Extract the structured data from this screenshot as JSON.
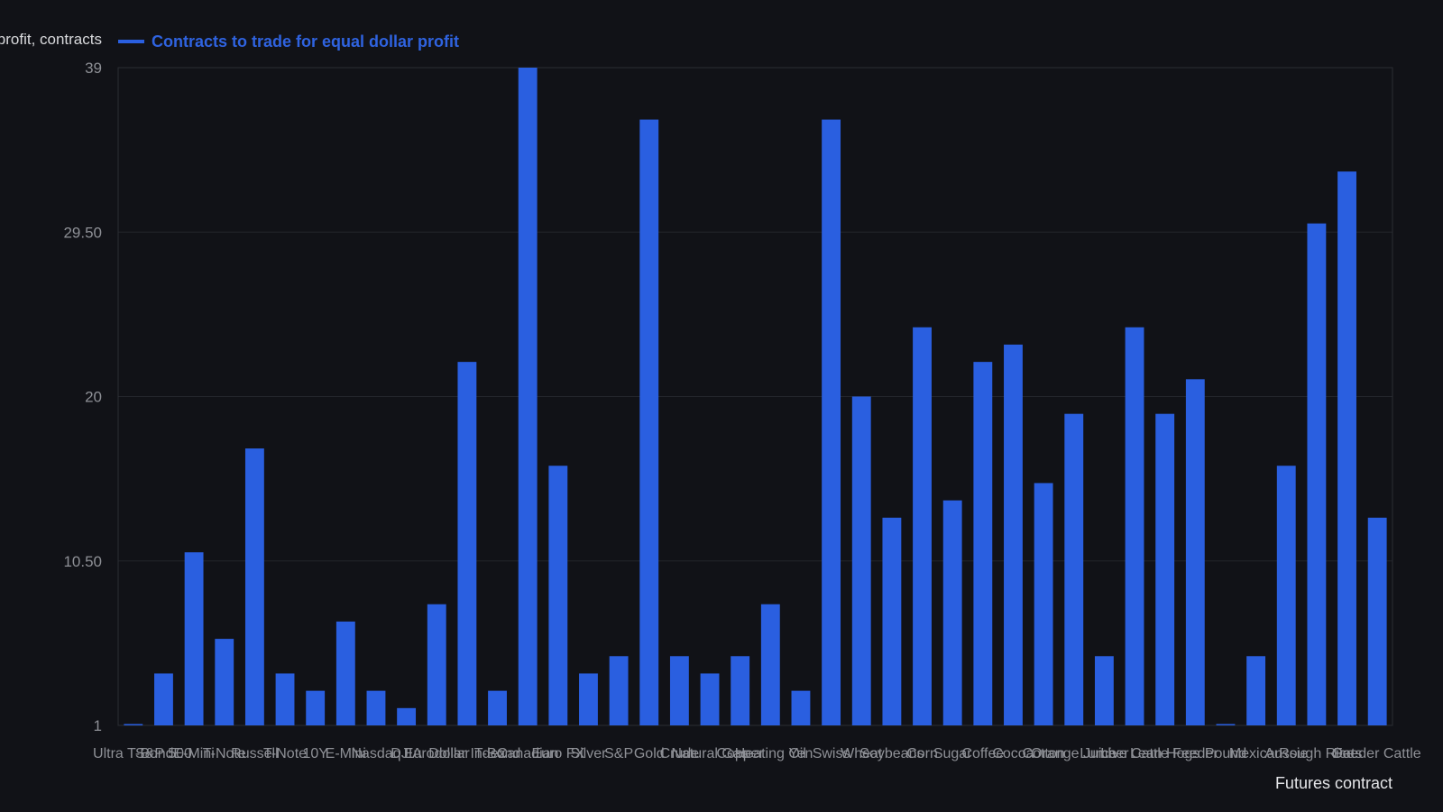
{
  "chart_data": {
    "type": "bar",
    "ylabel": "Contracts to trade for equal dollar profit, contracts",
    "xlabel": "Futures contract",
    "legend": {
      "placement": "top-left",
      "entries": [
        "Contracts to trade for equal dollar profit"
      ]
    },
    "series": [
      {
        "name": "Contracts to trade for equal dollar profit",
        "color": "#2a5fe0",
        "values": [
          1,
          4,
          11,
          6,
          17,
          4,
          3,
          7,
          3,
          2,
          8,
          22,
          3,
          39,
          16,
          4,
          5,
          36,
          5,
          4,
          5,
          8,
          3,
          36,
          20,
          13,
          24,
          14,
          22,
          23,
          15,
          19,
          5,
          24,
          19,
          21,
          1,
          5,
          16,
          30,
          33,
          13
        ]
      }
    ],
    "categories": [
      "Ultra T-Bond",
      "S&P 500",
      "E-Mini",
      "T-Note",
      "Russell",
      "T-Note",
      "10Y",
      "E-Mini",
      "Nasdaq",
      "DJIA",
      "Eurodollar",
      "Dollar Index",
      "T-Bond",
      "Canadian",
      "Euro FX",
      "Silver",
      "S&P",
      "Gold",
      "Crude",
      "Natural Gas",
      "Copper",
      "Heating Oil",
      "Yen",
      "Swiss",
      "Wheat",
      "Soybeans",
      "Corn",
      "Sugar",
      "Coffee",
      "Cocoa",
      "Cotton",
      "Orange Juice",
      "Lumber",
      "Live Cattle",
      "Lean Hogs",
      "Feeder",
      "Pound",
      "Mexican",
      "Aussie",
      "Rough Rice",
      "Oats",
      "Feeder Cattle"
    ],
    "yticks": [
      "1",
      "10.50",
      "20",
      "29.50",
      "39"
    ],
    "ylim": [
      1,
      39
    ],
    "grid": true
  }
}
